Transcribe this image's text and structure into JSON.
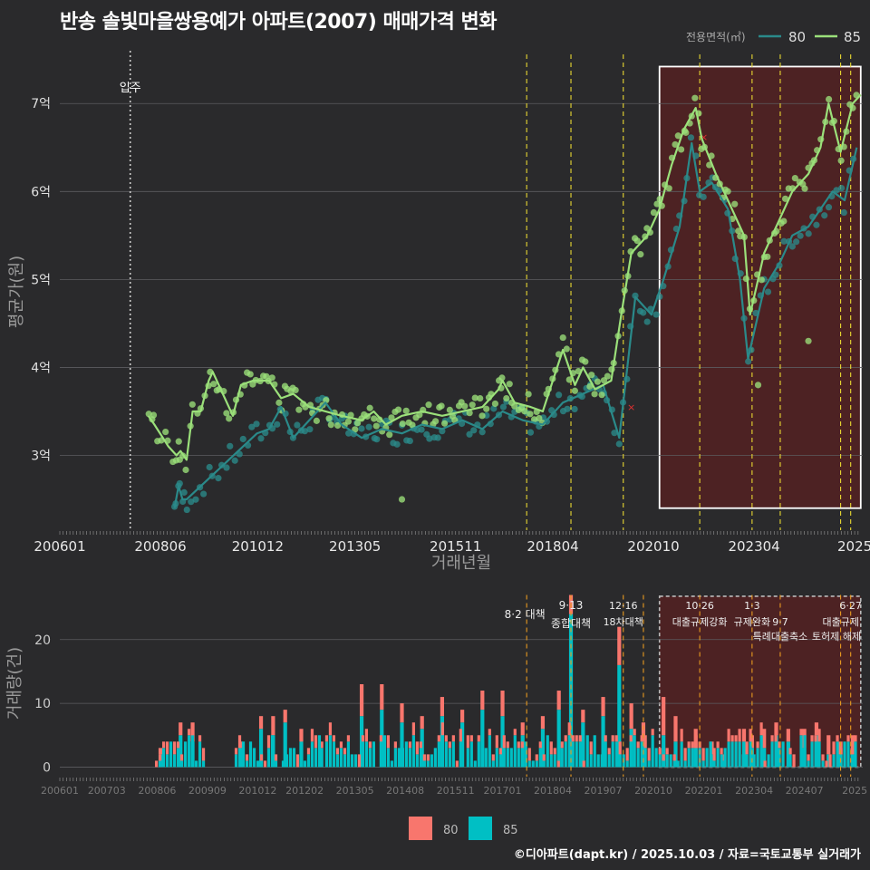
{
  "title": "반송 솔빛마을쌍용예가 아파트(2007) 매매가격 변화",
  "credit": "©디아파트(dapt.kr) / 2025.10.03 / 자료=국토교통부 실거래가",
  "colors": {
    "s80_price": "#2a8a8a",
    "s85_price": "#9be07a",
    "s80_vol": "#f8766d",
    "s85_vol": "#00bfc4",
    "policy": "#e8d832",
    "policy_bottom": "#e89a20",
    "highlight": "#5a2020",
    "background": "#2a2a2c"
  },
  "chart_data": [
    {
      "type": "line",
      "title": "반송 솔빛마을쌍용예가 아파트(2007) 매매가격 변화",
      "xlabel": "거래년월",
      "ylabel": "평균가(원)",
      "xlim": [
        2006.0,
        2025.95
      ],
      "ylim": [
        2.15,
        7.6
      ],
      "x_ticks": [
        2006.0,
        2008.5,
        2010.917,
        2013.333,
        2015.833,
        2018.25,
        2020.75,
        2023.25,
        2025.75
      ],
      "x_tick_labels": [
        "200601",
        "200806",
        "201012",
        "201305",
        "201511",
        "201804",
        "202010",
        "202304",
        "2025"
      ],
      "y_ticks": [
        3,
        4,
        5,
        6,
        7
      ],
      "y_tick_labels": [
        "3억",
        "4억",
        "5억",
        "6억",
        "7억"
      ],
      "legend_title": "전용면적(㎡)",
      "legend_position": "top-right",
      "move_in": {
        "x": 2007.75,
        "label": "입주"
      },
      "policy_lines": [
        2017.6,
        2018.7,
        2020.0,
        2021.9,
        2023.2,
        2023.9,
        2025.4,
        2025.65
      ],
      "highlight": [
        2020.9,
        2025.9
      ],
      "series": [
        {
          "name": "80",
          "x": [
            2008.85,
            2008.95,
            2009.05,
            2009.15,
            2010.9,
            2011.2,
            2011.5,
            2011.8,
            2012.2,
            2012.6,
            2013.0,
            2013.5,
            2014.0,
            2014.5,
            2015.0,
            2015.5,
            2016.0,
            2016.5,
            2017.0,
            2017.5,
            2018.0,
            2018.5,
            2019.0,
            2019.5,
            2019.9,
            2020.3,
            2020.7,
            2021.0,
            2021.4,
            2021.7,
            2021.9,
            2022.2,
            2022.6,
            2022.9,
            2023.1,
            2023.5,
            2023.9,
            2024.2,
            2024.6,
            2024.9,
            2025.2,
            2025.5,
            2025.8
          ],
          "y": [
            2.4,
            2.65,
            2.5,
            2.5,
            3.25,
            3.3,
            3.55,
            3.2,
            3.4,
            3.6,
            3.35,
            3.2,
            3.3,
            3.25,
            3.35,
            3.3,
            3.4,
            3.3,
            3.5,
            3.4,
            3.35,
            3.6,
            3.7,
            3.8,
            3.2,
            4.8,
            4.6,
            5.0,
            5.6,
            6.55,
            6.0,
            6.1,
            5.8,
            5.0,
            4.1,
            4.9,
            5.2,
            5.5,
            5.6,
            5.8,
            6.0,
            5.9,
            6.5
          ]
        },
        {
          "name": "85",
          "x": [
            2008.2,
            2008.35,
            2008.7,
            2008.9,
            2009.0,
            2009.15,
            2009.3,
            2009.5,
            2009.7,
            2009.8,
            2010.3,
            2010.5,
            2010.8,
            2011.2,
            2011.5,
            2011.8,
            2012.2,
            2012.6,
            2013.0,
            2013.5,
            2013.8,
            2014.1,
            2014.5,
            2015.0,
            2015.5,
            2016.0,
            2016.5,
            2016.9,
            2017.0,
            2017.3,
            2017.7,
            2018.0,
            2018.5,
            2018.8,
            2019.0,
            2019.3,
            2019.7,
            2019.95,
            2020.2,
            2020.6,
            2020.9,
            2021.2,
            2021.5,
            2021.8,
            2021.95,
            2022.3,
            2022.7,
            2023.0,
            2023.15,
            2023.5,
            2023.9,
            2024.2,
            2024.6,
            2024.9,
            2025.1,
            2025.4,
            2025.7,
            2025.9
          ],
          "y": [
            3.45,
            3.35,
            3.1,
            3.0,
            3.05,
            2.95,
            3.5,
            3.5,
            3.85,
            3.95,
            3.45,
            3.8,
            3.85,
            3.85,
            3.65,
            3.7,
            3.55,
            3.5,
            3.45,
            3.4,
            3.5,
            3.35,
            3.45,
            3.5,
            3.45,
            3.5,
            3.55,
            3.75,
            3.85,
            3.6,
            3.55,
            3.5,
            4.2,
            3.8,
            4.0,
            3.75,
            3.85,
            4.6,
            5.3,
            5.5,
            5.8,
            6.3,
            6.7,
            6.95,
            6.6,
            6.2,
            5.8,
            5.5,
            4.6,
            5.3,
            5.7,
            6.0,
            6.2,
            6.5,
            7.0,
            6.45,
            7.0,
            7.1
          ]
        }
      ]
    },
    {
      "type": "bar",
      "xlabel": "",
      "ylabel": "거래량(건)",
      "xlim": [
        2006.0,
        2025.95
      ],
      "ylim": [
        -1.5,
        27.5
      ],
      "y_ticks": [
        0,
        10,
        20
      ],
      "y_tick_labels": [
        "0",
        "10",
        "20"
      ],
      "x_ticks": [
        2006.0,
        2007.167,
        2008.417,
        2009.667,
        2010.917,
        2012.083,
        2013.333,
        2014.583,
        2015.833,
        2017.0,
        2018.25,
        2019.5,
        2020.75,
        2022.0,
        2023.25,
        2024.5,
        2025.75
      ],
      "x_tick_labels": [
        "200601",
        "200703",
        "200806",
        "200909",
        "201012",
        "201202",
        "201305",
        "201408",
        "201511",
        "201701",
        "201804",
        "201907",
        "202010",
        "202201",
        "202304",
        "202407",
        "2025"
      ],
      "legend_position": "bottom",
      "highlight": [
        2020.9,
        2025.9
      ],
      "policy_lines": [
        2017.6,
        2018.7,
        2020.0,
        2020.5,
        2021.9,
        2023.2,
        2023.9,
        2025.4,
        2025.65
      ],
      "annotations": [
        {
          "x": 2017.6,
          "date": "8·2 대책",
          "text": ""
        },
        {
          "x": 2018.7,
          "date": "9·13",
          "text": "종합대책"
        },
        {
          "x": 2020.0,
          "date": "12·16",
          "text": "18차대책"
        },
        {
          "x": 2021.9,
          "date": "10·26",
          "text": "대출규제강화"
        },
        {
          "x": 2023.2,
          "date": "1·3",
          "text": "규제완화"
        },
        {
          "x": 2023.9,
          "date": "9·7",
          "text": "특례대출축소"
        },
        {
          "x": 2025.65,
          "date": "6·27",
          "text": "대출규제"
        },
        {
          "x": 2025.3,
          "date": "",
          "text": "토허제 해제"
        }
      ],
      "series": [
        {
          "name": "80",
          "x": [
            2008.5,
            2009.0,
            2009.3,
            2010.5,
            2011.0,
            2011.3,
            2011.6,
            2012.0,
            2012.5,
            2013.5,
            2014.0,
            2014.5,
            2015.0,
            2015.5,
            2016.0,
            2016.5,
            2017.0,
            2017.5,
            2018.0,
            2018.4,
            2018.7,
            2019.0,
            2019.5,
            2019.9,
            2020.2,
            2020.5,
            2021.0,
            2021.3,
            2021.8,
            2022.2,
            2022.5,
            2023.0,
            2023.2,
            2023.5,
            2023.8,
            2024.1,
            2024.5,
            2024.8,
            2025.1,
            2025.4,
            2025.7
          ],
          "values": [
            1,
            2,
            3,
            1,
            2,
            3,
            2,
            2,
            1,
            5,
            4,
            3,
            2,
            3,
            2,
            3,
            4,
            2,
            2,
            3,
            3,
            2,
            3,
            6,
            4,
            3,
            6,
            4,
            3,
            2,
            1,
            2,
            2,
            3,
            2,
            2,
            3,
            2,
            3,
            2,
            3
          ]
        },
        {
          "name": "85",
          "x": [
            2008.5,
            2009.0,
            2009.3,
            2010.5,
            2011.0,
            2011.3,
            2011.6,
            2012.0,
            2012.5,
            2013.5,
            2014.0,
            2014.5,
            2015.0,
            2015.5,
            2016.0,
            2016.5,
            2017.0,
            2017.5,
            2018.0,
            2018.4,
            2018.7,
            2019.0,
            2019.5,
            2019.9,
            2020.2,
            2020.5,
            2021.0,
            2021.3,
            2021.8,
            2022.2,
            2022.5,
            2023.0,
            2023.2,
            2023.5,
            2023.8,
            2024.1,
            2024.5,
            2024.8,
            2025.1,
            2025.4,
            2025.7
          ],
          "values": [
            2,
            5,
            4,
            3,
            6,
            5,
            7,
            4,
            3,
            8,
            9,
            7,
            6,
            8,
            7,
            9,
            8,
            5,
            6,
            9,
            24,
            7,
            8,
            16,
            6,
            4,
            5,
            4,
            3,
            2,
            1,
            4,
            3,
            3,
            5,
            4,
            3,
            5,
            2,
            2,
            2
          ]
        }
      ]
    }
  ]
}
